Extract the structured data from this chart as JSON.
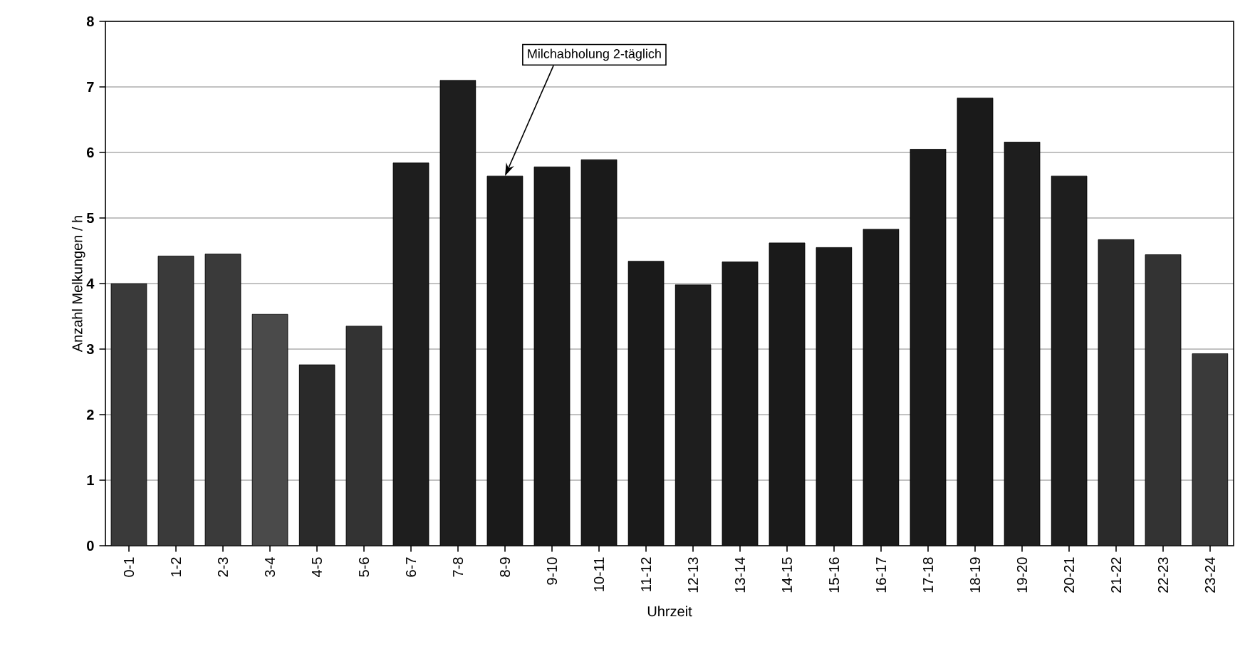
{
  "chart_data": {
    "type": "bar",
    "xlabel": "Uhrzeit",
    "ylabel": "Anzahl Melkungen / h",
    "categories": [
      "0-1",
      "1-2",
      "2-3",
      "3-4",
      "4-5",
      "5-6",
      "6-7",
      "7-8",
      "8-9",
      "9-10",
      "10-11",
      "11-12",
      "12-13",
      "13-14",
      "14-15",
      "15-16",
      "16-17",
      "17-18",
      "18-19",
      "19-20",
      "20-21",
      "21-22",
      "22-23",
      "23-24"
    ],
    "values": [
      4.0,
      4.42,
      4.45,
      3.53,
      2.76,
      3.35,
      5.84,
      7.1,
      5.64,
      5.78,
      5.89,
      4.34,
      3.98,
      4.33,
      4.62,
      4.55,
      4.83,
      6.05,
      6.83,
      6.16,
      5.64,
      4.67,
      4.44,
      2.93
    ],
    "colors": [
      "#3a3a3a",
      "#3a3a3a",
      "#3a3a3a",
      "#4a4a4a",
      "#2a2a2a",
      "#333333",
      "#1e1e1e",
      "#1e1e1e",
      "#1a1a1a",
      "#1a1a1a",
      "#1a1a1a",
      "#1a1a1a",
      "#1e1e1e",
      "#1a1a1a",
      "#1a1a1a",
      "#1a1a1a",
      "#1a1a1a",
      "#1a1a1a",
      "#1a1a1a",
      "#1e1e1e",
      "#1e1e1e",
      "#2a2a2a",
      "#333333",
      "#3a3a3a"
    ],
    "ylim": [
      0,
      8
    ],
    "yticks": [
      0,
      1,
      2,
      3,
      4,
      5,
      6,
      7,
      8
    ],
    "grid": "y",
    "annotations": [
      {
        "text": "Milchabholung 2-täglich",
        "x": "8-9",
        "y": 5.64
      }
    ]
  }
}
